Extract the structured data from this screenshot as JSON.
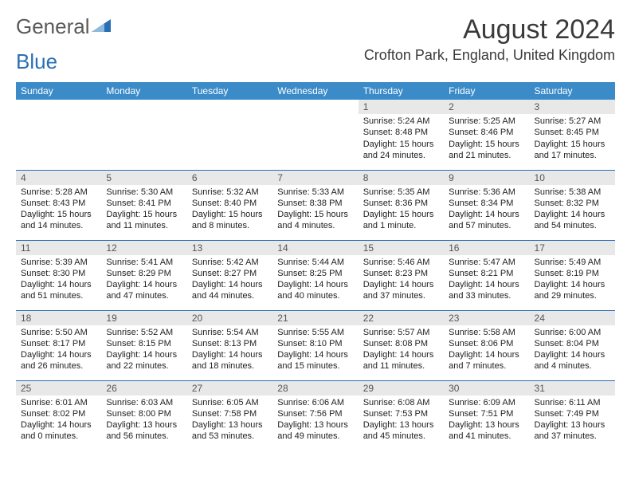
{
  "brand": {
    "word1": "General",
    "word2": "Blue"
  },
  "header": {
    "month_title": "August 2024",
    "location": "Crofton Park, England, United Kingdom"
  },
  "colors": {
    "header_bg": "#3b8bc8",
    "row_divider": "#2a6fb5",
    "daynum_bg": "#e8e8e8",
    "brand_blue": "#2a6fb5",
    "brand_gray": "#5a5a5a"
  },
  "weekdays": [
    "Sunday",
    "Monday",
    "Tuesday",
    "Wednesday",
    "Thursday",
    "Friday",
    "Saturday"
  ],
  "weeks": [
    [
      {
        "n": "",
        "sr": "",
        "ss": "",
        "dl": ""
      },
      {
        "n": "",
        "sr": "",
        "ss": "",
        "dl": ""
      },
      {
        "n": "",
        "sr": "",
        "ss": "",
        "dl": ""
      },
      {
        "n": "",
        "sr": "",
        "ss": "",
        "dl": ""
      },
      {
        "n": "1",
        "sr": "Sunrise: 5:24 AM",
        "ss": "Sunset: 8:48 PM",
        "dl": "Daylight: 15 hours and 24 minutes."
      },
      {
        "n": "2",
        "sr": "Sunrise: 5:25 AM",
        "ss": "Sunset: 8:46 PM",
        "dl": "Daylight: 15 hours and 21 minutes."
      },
      {
        "n": "3",
        "sr": "Sunrise: 5:27 AM",
        "ss": "Sunset: 8:45 PM",
        "dl": "Daylight: 15 hours and 17 minutes."
      }
    ],
    [
      {
        "n": "4",
        "sr": "Sunrise: 5:28 AM",
        "ss": "Sunset: 8:43 PM",
        "dl": "Daylight: 15 hours and 14 minutes."
      },
      {
        "n": "5",
        "sr": "Sunrise: 5:30 AM",
        "ss": "Sunset: 8:41 PM",
        "dl": "Daylight: 15 hours and 11 minutes."
      },
      {
        "n": "6",
        "sr": "Sunrise: 5:32 AM",
        "ss": "Sunset: 8:40 PM",
        "dl": "Daylight: 15 hours and 8 minutes."
      },
      {
        "n": "7",
        "sr": "Sunrise: 5:33 AM",
        "ss": "Sunset: 8:38 PM",
        "dl": "Daylight: 15 hours and 4 minutes."
      },
      {
        "n": "8",
        "sr": "Sunrise: 5:35 AM",
        "ss": "Sunset: 8:36 PM",
        "dl": "Daylight: 15 hours and 1 minute."
      },
      {
        "n": "9",
        "sr": "Sunrise: 5:36 AM",
        "ss": "Sunset: 8:34 PM",
        "dl": "Daylight: 14 hours and 57 minutes."
      },
      {
        "n": "10",
        "sr": "Sunrise: 5:38 AM",
        "ss": "Sunset: 8:32 PM",
        "dl": "Daylight: 14 hours and 54 minutes."
      }
    ],
    [
      {
        "n": "11",
        "sr": "Sunrise: 5:39 AM",
        "ss": "Sunset: 8:30 PM",
        "dl": "Daylight: 14 hours and 51 minutes."
      },
      {
        "n": "12",
        "sr": "Sunrise: 5:41 AM",
        "ss": "Sunset: 8:29 PM",
        "dl": "Daylight: 14 hours and 47 minutes."
      },
      {
        "n": "13",
        "sr": "Sunrise: 5:42 AM",
        "ss": "Sunset: 8:27 PM",
        "dl": "Daylight: 14 hours and 44 minutes."
      },
      {
        "n": "14",
        "sr": "Sunrise: 5:44 AM",
        "ss": "Sunset: 8:25 PM",
        "dl": "Daylight: 14 hours and 40 minutes."
      },
      {
        "n": "15",
        "sr": "Sunrise: 5:46 AM",
        "ss": "Sunset: 8:23 PM",
        "dl": "Daylight: 14 hours and 37 minutes."
      },
      {
        "n": "16",
        "sr": "Sunrise: 5:47 AM",
        "ss": "Sunset: 8:21 PM",
        "dl": "Daylight: 14 hours and 33 minutes."
      },
      {
        "n": "17",
        "sr": "Sunrise: 5:49 AM",
        "ss": "Sunset: 8:19 PM",
        "dl": "Daylight: 14 hours and 29 minutes."
      }
    ],
    [
      {
        "n": "18",
        "sr": "Sunrise: 5:50 AM",
        "ss": "Sunset: 8:17 PM",
        "dl": "Daylight: 14 hours and 26 minutes."
      },
      {
        "n": "19",
        "sr": "Sunrise: 5:52 AM",
        "ss": "Sunset: 8:15 PM",
        "dl": "Daylight: 14 hours and 22 minutes."
      },
      {
        "n": "20",
        "sr": "Sunrise: 5:54 AM",
        "ss": "Sunset: 8:13 PM",
        "dl": "Daylight: 14 hours and 18 minutes."
      },
      {
        "n": "21",
        "sr": "Sunrise: 5:55 AM",
        "ss": "Sunset: 8:10 PM",
        "dl": "Daylight: 14 hours and 15 minutes."
      },
      {
        "n": "22",
        "sr": "Sunrise: 5:57 AM",
        "ss": "Sunset: 8:08 PM",
        "dl": "Daylight: 14 hours and 11 minutes."
      },
      {
        "n": "23",
        "sr": "Sunrise: 5:58 AM",
        "ss": "Sunset: 8:06 PM",
        "dl": "Daylight: 14 hours and 7 minutes."
      },
      {
        "n": "24",
        "sr": "Sunrise: 6:00 AM",
        "ss": "Sunset: 8:04 PM",
        "dl": "Daylight: 14 hours and 4 minutes."
      }
    ],
    [
      {
        "n": "25",
        "sr": "Sunrise: 6:01 AM",
        "ss": "Sunset: 8:02 PM",
        "dl": "Daylight: 14 hours and 0 minutes."
      },
      {
        "n": "26",
        "sr": "Sunrise: 6:03 AM",
        "ss": "Sunset: 8:00 PM",
        "dl": "Daylight: 13 hours and 56 minutes."
      },
      {
        "n": "27",
        "sr": "Sunrise: 6:05 AM",
        "ss": "Sunset: 7:58 PM",
        "dl": "Daylight: 13 hours and 53 minutes."
      },
      {
        "n": "28",
        "sr": "Sunrise: 6:06 AM",
        "ss": "Sunset: 7:56 PM",
        "dl": "Daylight: 13 hours and 49 minutes."
      },
      {
        "n": "29",
        "sr": "Sunrise: 6:08 AM",
        "ss": "Sunset: 7:53 PM",
        "dl": "Daylight: 13 hours and 45 minutes."
      },
      {
        "n": "30",
        "sr": "Sunrise: 6:09 AM",
        "ss": "Sunset: 7:51 PM",
        "dl": "Daylight: 13 hours and 41 minutes."
      },
      {
        "n": "31",
        "sr": "Sunrise: 6:11 AM",
        "ss": "Sunset: 7:49 PM",
        "dl": "Daylight: 13 hours and 37 minutes."
      }
    ]
  ]
}
